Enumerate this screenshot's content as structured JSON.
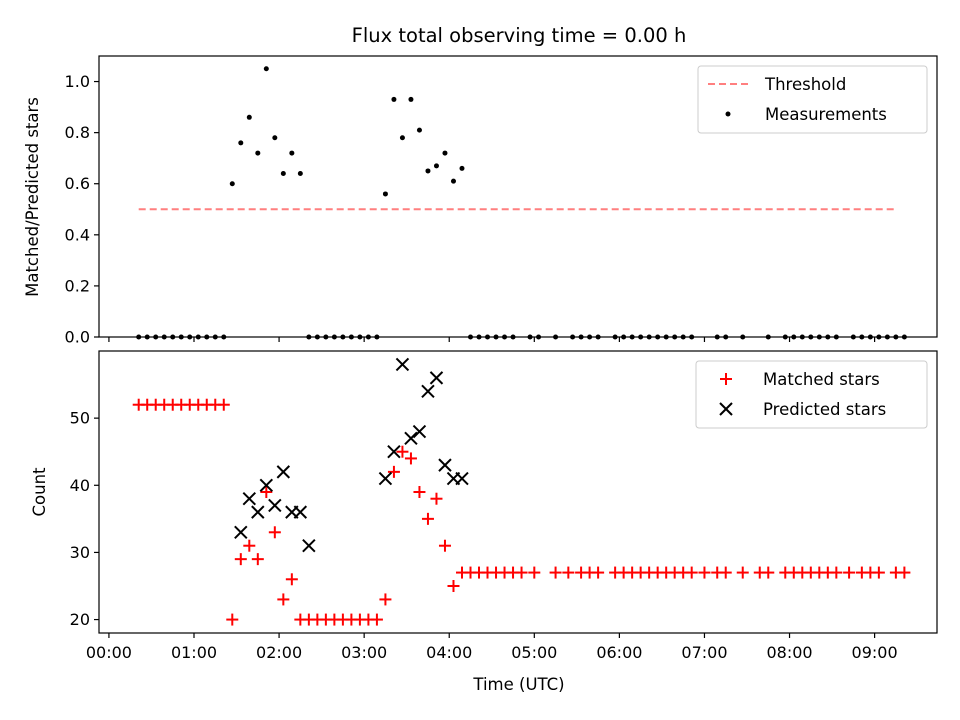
{
  "title": "Flux total observing time = 0.00 h",
  "chart_data": [
    {
      "type": "scatter",
      "ylabel": "Matched/Predicted stars",
      "xlabel": "",
      "xlim": [
        "23:53",
        "09:44"
      ],
      "ylim": [
        0,
        1.1
      ],
      "yticks": [
        "0.0",
        "0.2",
        "0.4",
        "0.6",
        "0.8",
        "1.0"
      ],
      "grid": false,
      "legend_position": "top-right",
      "threshold": {
        "name": "Threshold",
        "y": 0.5,
        "x_range": [
          "00:21",
          "09:15"
        ],
        "color": "#ff7f7f"
      },
      "measurements": {
        "name": "Measurements",
        "color": "#000000",
        "x": [
          "00:21",
          "00:27",
          "00:33",
          "00:39",
          "00:45",
          "00:51",
          "00:57",
          "01:03",
          "01:09",
          "01:15",
          "01:21",
          "01:27",
          "01:33",
          "01:39",
          "01:45",
          "01:51",
          "01:57",
          "02:03",
          "02:09",
          "02:15",
          "02:21",
          "02:27",
          "02:33",
          "02:39",
          "02:45",
          "02:51",
          "02:57",
          "03:03",
          "03:09",
          "03:15",
          "03:21",
          "03:27",
          "03:33",
          "03:39",
          "03:45",
          "03:51",
          "03:57",
          "04:03",
          "04:09",
          "04:15",
          "04:21",
          "04:27",
          "04:33",
          "04:39",
          "04:45",
          "04:57",
          "05:03",
          "05:15",
          "05:27",
          "05:33",
          "05:39",
          "05:45",
          "05:57",
          "06:03",
          "06:09",
          "06:15",
          "06:21",
          "06:27",
          "06:33",
          "06:39",
          "06:45",
          "06:51",
          "07:09",
          "07:15",
          "07:27",
          "07:45",
          "07:57",
          "08:03",
          "08:09",
          "08:15",
          "08:21",
          "08:27",
          "08:33",
          "08:45",
          "08:51",
          "08:57",
          "09:03",
          "09:09",
          "09:15",
          "09:21"
        ],
        "y": [
          0,
          0,
          0,
          0,
          0,
          0,
          0,
          0,
          0,
          0,
          0,
          0.6,
          0.76,
          0.86,
          0.72,
          1.05,
          0.78,
          0.64,
          0.72,
          0.64,
          0,
          0,
          0,
          0,
          0,
          0,
          0,
          0,
          0,
          0.56,
          0.93,
          0.78,
          0.93,
          0.81,
          0.65,
          0.67,
          0.72,
          0.61,
          0.66,
          0,
          0,
          0,
          0,
          0,
          0,
          0,
          0,
          0,
          0,
          0,
          0,
          0,
          0,
          0,
          0,
          0,
          0,
          0,
          0,
          0,
          0,
          0,
          0,
          0,
          0,
          0,
          0,
          0,
          0,
          0,
          0,
          0,
          0,
          0,
          0,
          0,
          0,
          0,
          0,
          0
        ]
      },
      "legend": [
        "Threshold",
        "Measurements"
      ]
    },
    {
      "type": "scatter",
      "ylabel": "Count",
      "xlabel": "Time (UTC)",
      "xlim": [
        "23:53",
        "09:44"
      ],
      "ylim": [
        18,
        60
      ],
      "xticks": [
        "00:00",
        "01:00",
        "02:00",
        "03:00",
        "04:00",
        "05:00",
        "06:00",
        "07:00",
        "08:00",
        "09:00"
      ],
      "yticks": [
        "20",
        "30",
        "40",
        "50"
      ],
      "grid": false,
      "legend_position": "top-right",
      "series": [
        {
          "name": "Matched stars",
          "marker": "+",
          "color": "#ff0000",
          "x": [
            "00:21",
            "00:27",
            "00:33",
            "00:39",
            "00:45",
            "00:51",
            "00:57",
            "01:03",
            "01:09",
            "01:15",
            "01:21",
            "01:27",
            "01:33",
            "01:39",
            "01:45",
            "01:51",
            "01:57",
            "02:03",
            "02:09",
            "02:15",
            "02:21",
            "02:27",
            "02:33",
            "02:39",
            "02:45",
            "02:51",
            "02:57",
            "03:03",
            "03:09",
            "03:15",
            "03:21",
            "03:27",
            "03:33",
            "03:39",
            "03:45",
            "03:51",
            "03:57",
            "04:03",
            "04:09",
            "04:15",
            "04:21",
            "04:27",
            "04:33",
            "04:39",
            "04:45",
            "04:51",
            "05:00",
            "05:15",
            "05:24",
            "05:33",
            "05:39",
            "05:45",
            "05:57",
            "06:03",
            "06:09",
            "06:15",
            "06:21",
            "06:27",
            "06:33",
            "06:39",
            "06:45",
            "06:51",
            "07:00",
            "07:09",
            "07:15",
            "07:27",
            "07:39",
            "07:45",
            "07:57",
            "08:03",
            "08:09",
            "08:15",
            "08:21",
            "08:27",
            "08:33",
            "08:42",
            "08:51",
            "08:57",
            "09:03",
            "09:15",
            "09:21"
          ],
          "y": [
            52,
            52,
            52,
            52,
            52,
            52,
            52,
            52,
            52,
            52,
            52,
            20,
            29,
            31,
            29,
            39,
            33,
            23,
            26,
            20,
            20,
            20,
            20,
            20,
            20,
            20,
            20,
            20,
            20,
            23,
            42,
            45,
            44,
            39,
            35,
            38,
            31,
            25,
            27,
            27,
            27,
            27,
            27,
            27,
            27,
            27,
            27,
            27,
            27,
            27,
            27,
            27,
            27,
            27,
            27,
            27,
            27,
            27,
            27,
            27,
            27,
            27,
            27,
            27,
            27,
            27,
            27,
            27,
            27,
            27,
            27,
            27,
            27,
            27,
            27,
            27,
            27,
            27,
            27,
            27,
            27
          ]
        },
        {
          "name": "Predicted stars",
          "marker": "x",
          "color": "#000000",
          "x": [
            "01:33",
            "01:39",
            "01:45",
            "01:51",
            "01:57",
            "02:03",
            "02:09",
            "02:15",
            "02:21",
            "03:15",
            "03:21",
            "03:27",
            "03:33",
            "03:39",
            "03:45",
            "03:51",
            "03:57",
            "04:03",
            "04:09"
          ],
          "y": [
            33,
            38,
            36,
            40,
            37,
            42,
            36,
            36,
            31,
            41,
            45,
            58,
            47,
            48,
            54,
            56,
            43,
            41,
            41
          ]
        }
      ],
      "legend": [
        "Matched stars",
        "Predicted stars"
      ]
    }
  ]
}
